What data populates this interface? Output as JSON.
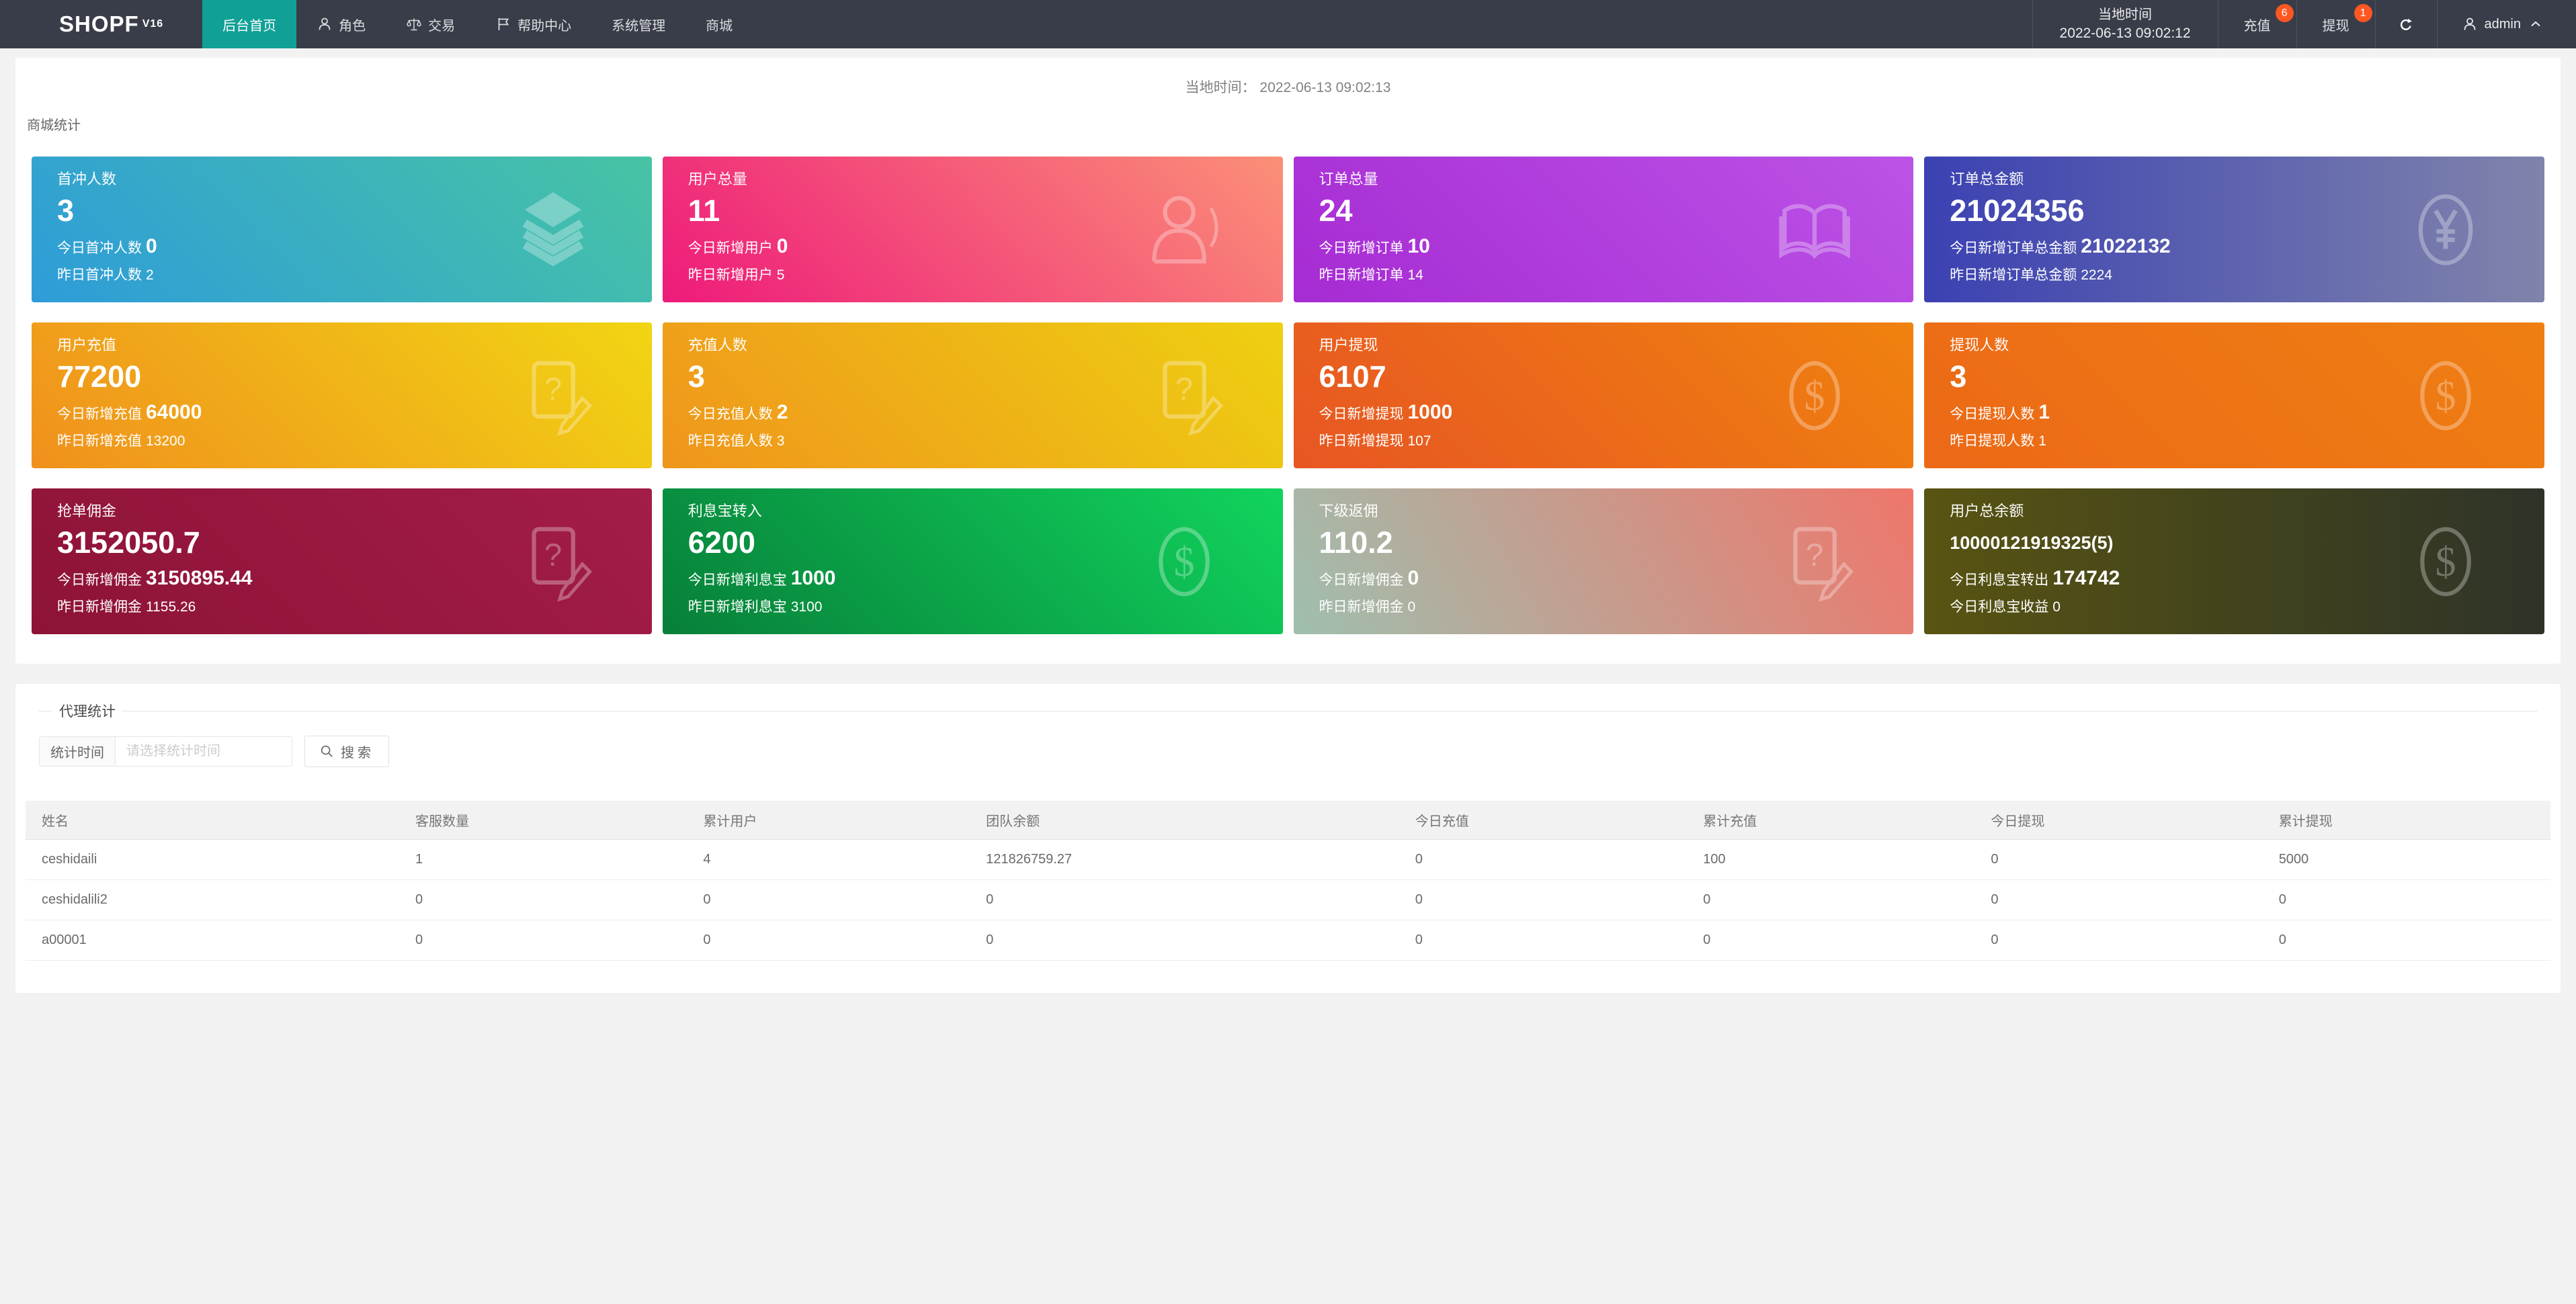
{
  "navbar": {
    "logo": "SHOPF",
    "logo_version": "V16",
    "items": [
      {
        "key": "home",
        "label": "后台首页",
        "icon": null,
        "active": true
      },
      {
        "key": "roles",
        "label": "角色",
        "icon": "user-small",
        "active": false
      },
      {
        "key": "trade",
        "label": "交易",
        "icon": "scale",
        "active": false
      },
      {
        "key": "help-center",
        "label": "帮助中心",
        "icon": "flag",
        "active": false
      },
      {
        "key": "system",
        "label": "系统管理",
        "icon": null,
        "active": false
      },
      {
        "key": "mall",
        "label": "商城",
        "icon": null,
        "active": false
      }
    ],
    "local_time_label": "当地时间",
    "local_time_value": "2022-06-13 09:02:12",
    "recharge": {
      "label": "充值",
      "badge": "6"
    },
    "withdraw": {
      "label": "提现",
      "badge": "1"
    },
    "user_name": "admin",
    "active_color": "#10A096",
    "badge_color": "#FF5722"
  },
  "overview": {
    "local_time_label": "当地时间：",
    "local_time_value": "2022-06-13 09:02:13",
    "section_title": "商城统计",
    "cards": [
      {
        "key": "first-charge-users",
        "title": "首冲人数",
        "value": "3",
        "line3": {
          "label": "今日首冲人数",
          "value": "0"
        },
        "line4": {
          "label": "昨日首冲人数",
          "value": "2"
        },
        "icon": "layers",
        "gradient": {
          "direction": "45deg",
          "from": "#2E9CD9",
          "to": "#47C4A4"
        }
      },
      {
        "key": "total-users",
        "title": "用户总量",
        "value": "11",
        "line3": {
          "label": "今日新增用户",
          "value": "0"
        },
        "line4": {
          "label": "昨日新增用户",
          "value": "5"
        },
        "icon": "user-large",
        "gradient": {
          "direction": "45deg",
          "from": "#EE1A7B",
          "to": "#FB9077"
        }
      },
      {
        "key": "total-orders",
        "title": "订单总量",
        "value": "24",
        "line3": {
          "label": "今日新增订单",
          "value": "10"
        },
        "line4": {
          "label": "昨日新增订单",
          "value": "14"
        },
        "icon": "book",
        "gradient": {
          "direction": "45deg",
          "from": "#A62BD3",
          "to": "#BC53E6"
        }
      },
      {
        "key": "total-order-amount",
        "title": "订单总金额",
        "value": "21024356",
        "line3": {
          "label": "今日新增订单总金额",
          "value": "21022132"
        },
        "line4": {
          "label": "昨日新增订单总金额",
          "value": "2224"
        },
        "icon": "yen-circle",
        "gradient": {
          "direction": "to right",
          "from": "#3B41B2",
          "to": "#8084AB"
        }
      },
      {
        "key": "user-recharge",
        "title": "用户充值",
        "value": "77200",
        "line3": {
          "label": "今日新增充值",
          "value": "64000"
        },
        "line4": {
          "label": "昨日新增充值",
          "value": "13200"
        },
        "icon": "file-question",
        "gradient": {
          "direction": "45deg",
          "from": "#F0901D",
          "to": "#F1D513"
        }
      },
      {
        "key": "recharge-users",
        "title": "充值人数",
        "value": "3",
        "line3": {
          "label": "今日充值人数",
          "value": "2"
        },
        "line4": {
          "label": "昨日充值人数",
          "value": "3"
        },
        "icon": "file-question",
        "gradient": {
          "direction": "45deg",
          "from": "#EF951C",
          "to": "#EED011"
        }
      },
      {
        "key": "user-withdraw",
        "title": "用户提现",
        "value": "6107",
        "line3": {
          "label": "今日新增提现",
          "value": "1000"
        },
        "line4": {
          "label": "昨日新增提现",
          "value": "107"
        },
        "icon": "dollar-circle",
        "gradient": {
          "direction": "45deg",
          "from": "#E75623",
          "to": "#F0820E"
        }
      },
      {
        "key": "withdraw-users",
        "title": "提现人数",
        "value": "3",
        "line3": {
          "label": "今日提现人数",
          "value": "1"
        },
        "line4": {
          "label": "昨日提现人数",
          "value": "1"
        },
        "icon": "dollar-circle",
        "gradient": {
          "direction": "45deg",
          "from": "#EC6917",
          "to": "#EF7F12"
        }
      },
      {
        "key": "order-commission",
        "title": "抢单佣金",
        "value": "3152050.7",
        "line3": {
          "label": "今日新增佣金",
          "value": "3150895.44"
        },
        "line4": {
          "label": "昨日新增佣金",
          "value": "1155.26"
        },
        "icon": "file-question",
        "gradient": {
          "direction": "45deg",
          "from": "#8D1336",
          "to": "#A31D48"
        }
      },
      {
        "key": "interest-transfer-in",
        "title": "利息宝转入",
        "value": "6200",
        "line3": {
          "label": "今日新增利息宝",
          "value": "1000"
        },
        "line4": {
          "label": "昨日新增利息宝",
          "value": "3100"
        },
        "icon": "dollar-circle",
        "gradient": {
          "direction": "45deg",
          "from": "#077F39",
          "to": "#11D45D"
        }
      },
      {
        "key": "sub-rebate",
        "title": "下级返佣",
        "value": "110.2",
        "line3": {
          "label": "今日新增佣金",
          "value": "0"
        },
        "line4": {
          "label": "昨日新增佣金",
          "value": "0"
        },
        "icon": "file-question",
        "gradient": {
          "direction": "60deg",
          "from": "#9FBFAE",
          "to": "#EF766B"
        }
      },
      {
        "key": "total-balance",
        "title": "用户总余额",
        "value": "10000121919325(5)",
        "line3": {
          "label": "今日利息宝转出",
          "value": "174742"
        },
        "line4": {
          "label": "今日利息宝收益",
          "value": "0"
        },
        "icon": "dollar-circle",
        "gradient": {
          "direction": "to right",
          "from": "#585412",
          "to": "#2E3328"
        }
      }
    ]
  },
  "agent": {
    "legend": "代理统计",
    "form": {
      "label": "统计时间",
      "placeholder": "请选择统计时间",
      "search_label": "搜索"
    },
    "table": {
      "columns": [
        "姓名",
        "客服数量",
        "累计用户",
        "团队余额",
        "今日充值",
        "累计充值",
        "今日提现",
        "累计提现"
      ],
      "rows": [
        [
          "ceshidaili",
          "1",
          "4",
          "121826759.27",
          "0",
          "100",
          "0",
          "5000"
        ],
        [
          "ceshidalili2",
          "0",
          "0",
          "0",
          "0",
          "0",
          "0",
          "0"
        ],
        [
          "a00001",
          "0",
          "0",
          "0",
          "0",
          "0",
          "0",
          "0"
        ]
      ]
    }
  }
}
